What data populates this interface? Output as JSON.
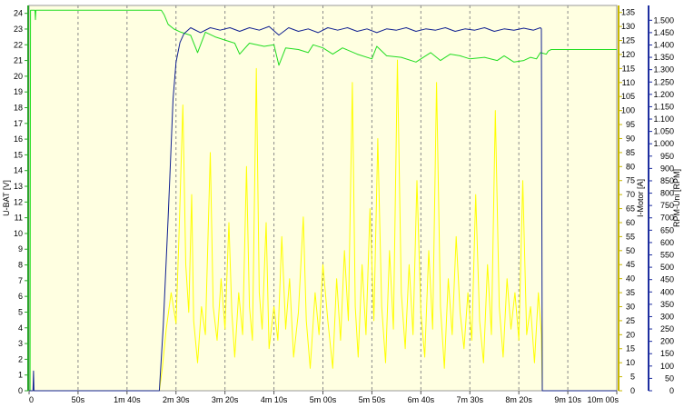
{
  "chart_data": {
    "type": "line",
    "x_unit": "seconds",
    "xlim": [
      0,
      600
    ],
    "x_ticks": [
      {
        "t": 0,
        "label": "0"
      },
      {
        "t": 50,
        "label": "50s"
      },
      {
        "t": 100,
        "label": "1m 40s"
      },
      {
        "t": 150,
        "label": "2m 30s"
      },
      {
        "t": 200,
        "label": "3m 20s"
      },
      {
        "t": 250,
        "label": "4m 10s"
      },
      {
        "t": 300,
        "label": "5m 00s"
      },
      {
        "t": 350,
        "label": "5m 50s"
      },
      {
        "t": 400,
        "label": "6m 40s"
      },
      {
        "t": 450,
        "label": "7m 30s"
      },
      {
        "t": 500,
        "label": "8m 20s"
      },
      {
        "t": 550,
        "label": "9m 10s"
      },
      {
        "t": 600,
        "label": "10m 00s"
      }
    ],
    "axes": {
      "left": {
        "label": "U-BAT [V]",
        "range": [
          0,
          24.5
        ],
        "ticks": [
          0,
          1,
          2,
          3,
          4,
          5,
          6,
          7,
          8,
          9,
          10,
          11,
          12,
          13,
          14,
          15,
          16,
          17,
          18,
          19,
          20,
          21,
          22,
          23,
          24
        ],
        "color": "#2aa52a"
      },
      "right1": {
        "label": "I-Motor [A]",
        "range": [
          0,
          137.5
        ],
        "ticks": [
          0,
          5,
          10,
          15,
          20,
          25,
          30,
          35,
          40,
          45,
          50,
          55,
          60,
          65,
          70,
          75,
          80,
          85,
          90,
          95,
          100,
          105,
          110,
          115,
          120,
          125,
          130,
          135
        ],
        "color": "#c9b800"
      },
      "right2": {
        "label": "RPM-Uni [RPM]",
        "range": [
          0,
          1560
        ],
        "ticks": [
          0,
          50,
          100,
          150,
          200,
          250,
          300,
          350,
          400,
          450,
          500,
          550,
          600,
          650,
          700,
          750,
          800,
          850,
          900,
          950,
          1000,
          1050,
          1100,
          1150,
          1200,
          1250,
          1300,
          1350,
          1400,
          1450,
          1500
        ],
        "color": "#1e2ea0"
      }
    },
    "grid": {
      "vertical": true,
      "horizontal": false
    },
    "series": [
      {
        "name": "U-BAT",
        "axis": "left",
        "color": "#22dd22",
        "points": [
          [
            0,
            0
          ],
          [
            1,
            0
          ],
          [
            1.5,
            24.2
          ],
          [
            6,
            24.2
          ],
          [
            6.5,
            23.6
          ],
          [
            7,
            24.2
          ],
          [
            135,
            24.2
          ],
          [
            138,
            23.9
          ],
          [
            142,
            23.3
          ],
          [
            148,
            23.0
          ],
          [
            155,
            22.8
          ],
          [
            165,
            22.6
          ],
          [
            172,
            21.5
          ],
          [
            180,
            22.8
          ],
          [
            190,
            22.5
          ],
          [
            200,
            22.3
          ],
          [
            210,
            22.1
          ],
          [
            215,
            21.4
          ],
          [
            225,
            22.1
          ],
          [
            240,
            21.9
          ],
          [
            250,
            22.0
          ],
          [
            255,
            20.7
          ],
          [
            262,
            21.8
          ],
          [
            275,
            21.7
          ],
          [
            285,
            21.5
          ],
          [
            290,
            22.0
          ],
          [
            300,
            21.8
          ],
          [
            310,
            21.4
          ],
          [
            320,
            21.8
          ],
          [
            335,
            21.4
          ],
          [
            350,
            21.1
          ],
          [
            355,
            21.9
          ],
          [
            365,
            21.3
          ],
          [
            380,
            21.2
          ],
          [
            395,
            20.9
          ],
          [
            410,
            21.5
          ],
          [
            420,
            21.0
          ],
          [
            430,
            21.4
          ],
          [
            440,
            21.3
          ],
          [
            450,
            21.1
          ],
          [
            465,
            21.2
          ],
          [
            478,
            21.0
          ],
          [
            485,
            21.3
          ],
          [
            495,
            20.9
          ],
          [
            505,
            21.0
          ],
          [
            512,
            21.2
          ],
          [
            518,
            21.1
          ],
          [
            522,
            21.5
          ],
          [
            528,
            21.4
          ],
          [
            530,
            21.6
          ],
          [
            533,
            21.7
          ],
          [
            545,
            21.7
          ],
          [
            600,
            21.7
          ]
        ]
      },
      {
        "name": "RPM-Uni",
        "axis": "right2",
        "color": "#102090",
        "points": [
          [
            0,
            0
          ],
          [
            4,
            0
          ],
          [
            4.5,
            80
          ],
          [
            5,
            0
          ],
          [
            133,
            0
          ],
          [
            137,
            260
          ],
          [
            142,
            700
          ],
          [
            147,
            1180
          ],
          [
            150,
            1330
          ],
          [
            154,
            1410
          ],
          [
            158,
            1445
          ],
          [
            165,
            1470
          ],
          [
            175,
            1450
          ],
          [
            185,
            1470
          ],
          [
            195,
            1460
          ],
          [
            205,
            1470
          ],
          [
            215,
            1455
          ],
          [
            225,
            1470
          ],
          [
            235,
            1460
          ],
          [
            245,
            1475
          ],
          [
            255,
            1440
          ],
          [
            265,
            1470
          ],
          [
            275,
            1455
          ],
          [
            285,
            1465
          ],
          [
            295,
            1450
          ],
          [
            305,
            1470
          ],
          [
            315,
            1460
          ],
          [
            325,
            1470
          ],
          [
            335,
            1455
          ],
          [
            345,
            1465
          ],
          [
            355,
            1450
          ],
          [
            365,
            1465
          ],
          [
            375,
            1460
          ],
          [
            385,
            1470
          ],
          [
            395,
            1455
          ],
          [
            405,
            1465
          ],
          [
            415,
            1460
          ],
          [
            425,
            1470
          ],
          [
            435,
            1455
          ],
          [
            445,
            1465
          ],
          [
            455,
            1460
          ],
          [
            465,
            1470
          ],
          [
            475,
            1455
          ],
          [
            485,
            1465
          ],
          [
            495,
            1460
          ],
          [
            505,
            1468
          ],
          [
            515,
            1460
          ],
          [
            522,
            1470
          ],
          [
            523,
            1465
          ],
          [
            524,
            0
          ],
          [
            600,
            0
          ]
        ]
      },
      {
        "name": "I-Motor",
        "axis": "right1",
        "color": "#ffff00",
        "points": [
          [
            0,
            0
          ],
          [
            133,
            0
          ],
          [
            136,
            8
          ],
          [
            140,
            22
          ],
          [
            145,
            35
          ],
          [
            150,
            24
          ],
          [
            153,
            55
          ],
          [
            157,
            102
          ],
          [
            160,
            45
          ],
          [
            163,
            28
          ],
          [
            166,
            70
          ],
          [
            168,
            25
          ],
          [
            172,
            10
          ],
          [
            176,
            30
          ],
          [
            180,
            20
          ],
          [
            185,
            85
          ],
          [
            188,
            30
          ],
          [
            192,
            18
          ],
          [
            196,
            40
          ],
          [
            200,
            22
          ],
          [
            204,
            60
          ],
          [
            207,
            28
          ],
          [
            210,
            12
          ],
          [
            214,
            35
          ],
          [
            218,
            20
          ],
          [
            222,
            80
          ],
          [
            225,
            30
          ],
          [
            228,
            18
          ],
          [
            232,
            115
          ],
          [
            235,
            35
          ],
          [
            238,
            22
          ],
          [
            242,
            60
          ],
          [
            245,
            15
          ],
          [
            250,
            30
          ],
          [
            254,
            18
          ],
          [
            258,
            55
          ],
          [
            262,
            22
          ],
          [
            266,
            40
          ],
          [
            270,
            12
          ],
          [
            275,
            28
          ],
          [
            280,
            62
          ],
          [
            283,
            25
          ],
          [
            287,
            8
          ],
          [
            292,
            35
          ],
          [
            296,
            20
          ],
          [
            300,
            45
          ],
          [
            305,
            25
          ],
          [
            310,
            8
          ],
          [
            314,
            40
          ],
          [
            318,
            18
          ],
          [
            322,
            50
          ],
          [
            326,
            25
          ],
          [
            330,
            110
          ],
          [
            333,
            30
          ],
          [
            336,
            12
          ],
          [
            340,
            45
          ],
          [
            344,
            20
          ],
          [
            348,
            65
          ],
          [
            352,
            25
          ],
          [
            356,
            90
          ],
          [
            360,
            30
          ],
          [
            364,
            10
          ],
          [
            368,
            50
          ],
          [
            372,
            22
          ],
          [
            376,
            118
          ],
          [
            380,
            35
          ],
          [
            384,
            15
          ],
          [
            388,
            45
          ],
          [
            392,
            20
          ],
          [
            396,
            75
          ],
          [
            400,
            28
          ],
          [
            404,
            12
          ],
          [
            408,
            50
          ],
          [
            412,
            22
          ],
          [
            416,
            110
          ],
          [
            420,
            30
          ],
          [
            424,
            8
          ],
          [
            428,
            40
          ],
          [
            432,
            20
          ],
          [
            436,
            55
          ],
          [
            440,
            28
          ],
          [
            444,
            15
          ],
          [
            448,
            35
          ],
          [
            452,
            18
          ],
          [
            456,
            70
          ],
          [
            460,
            25
          ],
          [
            464,
            10
          ],
          [
            468,
            45
          ],
          [
            472,
            20
          ],
          [
            476,
            100
          ],
          [
            480,
            30
          ],
          [
            484,
            12
          ],
          [
            488,
            40
          ],
          [
            492,
            22
          ],
          [
            496,
            35
          ],
          [
            500,
            18
          ],
          [
            504,
            75
          ],
          [
            508,
            20
          ],
          [
            512,
            30
          ],
          [
            516,
            10
          ],
          [
            520,
            35
          ],
          [
            522,
            25
          ],
          [
            523,
            20
          ],
          [
            524,
            0
          ],
          [
            600,
            0
          ]
        ]
      }
    ]
  }
}
